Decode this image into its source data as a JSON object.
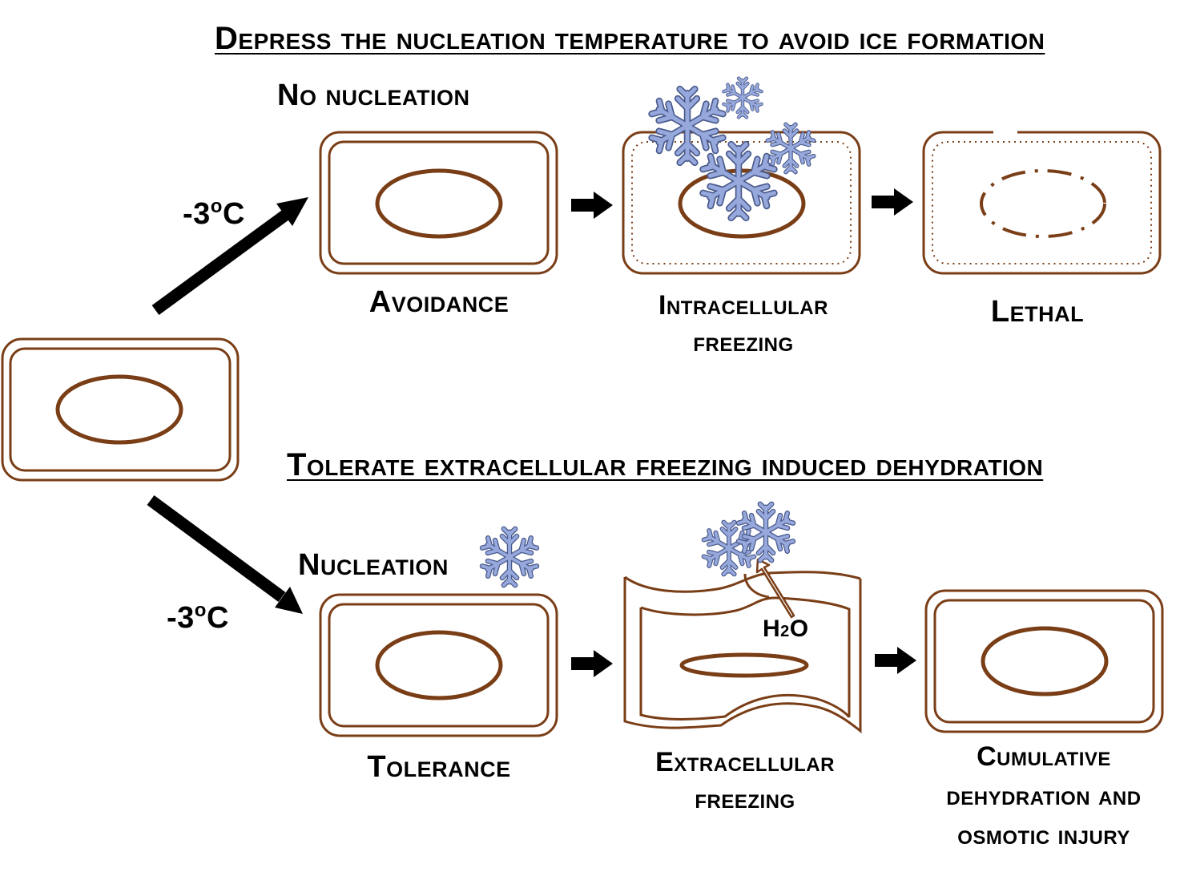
{
  "top_heading": "Depress the nucleation temperature to avoid ice formation",
  "bottom_heading": "Tolerate extracellular freezing induced dehydration",
  "top_branch": {
    "temperature_value": "-3",
    "temperature_sup": "o",
    "temperature_unit": "C",
    "note": "No nucleation",
    "stages": [
      {
        "label": "Avoidance"
      },
      {
        "label_line1": "Intracellular",
        "label_line2": "freezing"
      },
      {
        "label": "Lethal"
      }
    ]
  },
  "bottom_branch": {
    "temperature_value": "-3",
    "temperature_sup": "o",
    "temperature_unit": "C",
    "note": "Nucleation",
    "water_main": "H",
    "water_sub": "2",
    "water_tail": "O",
    "stages": [
      {
        "label": "Tolerance"
      },
      {
        "label_line1": "Extracellular",
        "label_line2": "freezing"
      },
      {
        "label_line1": "Cumulative",
        "label_line2": "dehydration and",
        "label_line3": "osmotic injury"
      }
    ]
  },
  "colors": {
    "cell_outline": "#7a3e17",
    "snowflake": "#97a9dc",
    "snowflake_stroke": "#4a5a8c",
    "arrow": "#000000"
  },
  "icons": [
    "snowflake-icon",
    "arrow-icon"
  ]
}
